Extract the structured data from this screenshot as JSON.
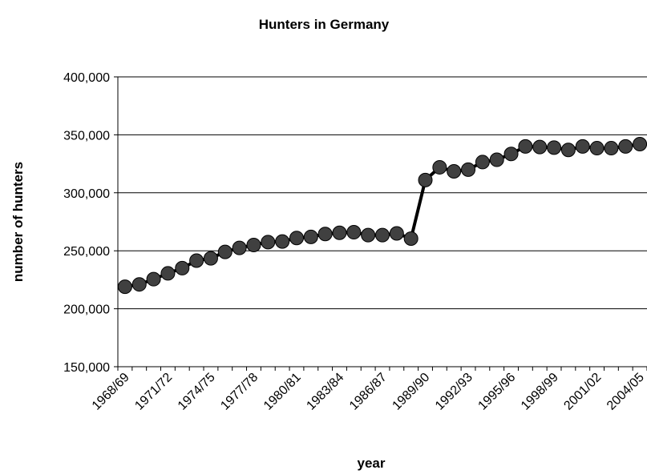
{
  "chart_data": {
    "type": "line",
    "title": "Hunters in Germany",
    "x_label": "year",
    "y_label": "number of hunters",
    "categories": [
      "1968/69",
      null,
      null,
      "1971/72",
      null,
      null,
      "1974/75",
      null,
      null,
      "1977/78",
      null,
      null,
      "1980/81",
      null,
      null,
      "1983/84",
      null,
      null,
      "1986/87",
      null,
      null,
      "1989/90",
      null,
      null,
      "1992/93",
      null,
      null,
      "1995/96",
      null,
      null,
      "1998/99",
      null,
      null,
      "2001/02",
      null,
      null,
      "2004/05"
    ],
    "series": [
      {
        "name": "hunters",
        "color": "#000000",
        "marker_color": "#404040",
        "values": [
          219000,
          221000,
          225500,
          230500,
          235000,
          241500,
          243500,
          249000,
          252500,
          255000,
          257500,
          258000,
          261000,
          262000,
          264500,
          265500,
          266000,
          263500,
          263500,
          265000,
          260500,
          311000,
          322000,
          318500,
          320000,
          326500,
          328500,
          333500,
          340000,
          339500,
          339000,
          337000,
          340000,
          338500,
          338500,
          340000,
          342000
        ]
      }
    ],
    "ylim": [
      150000,
      400000
    ],
    "yticks": [
      {
        "value": 150000,
        "label": "150,000"
      },
      {
        "value": 200000,
        "label": "200,000"
      },
      {
        "value": 250000,
        "label": "250,000"
      },
      {
        "value": 300000,
        "label": "300,000"
      },
      {
        "value": 350000,
        "label": "350,000"
      },
      {
        "value": 400000,
        "label": "400,000"
      }
    ],
    "grid": true
  }
}
